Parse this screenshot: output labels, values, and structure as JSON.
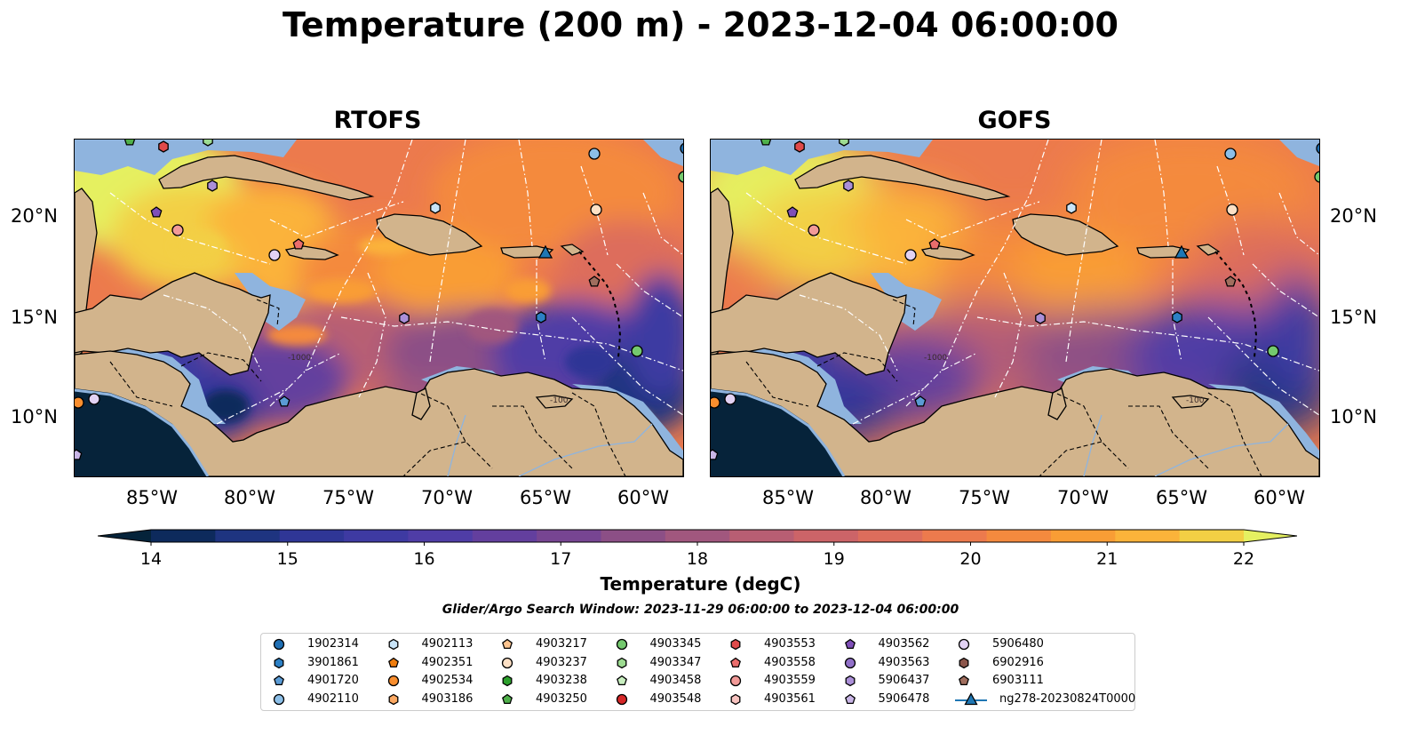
{
  "title": "Temperature (200 m) - 2023-12-04 06:00:00",
  "panels": [
    {
      "title": "RTOFS",
      "variant": "rtofs"
    },
    {
      "title": "GOFS",
      "variant": "gofs"
    }
  ],
  "lat_labels": [
    "20°N",
    "15°N",
    "10°N"
  ],
  "lon_labels": [
    "85°W",
    "80°W",
    "75°W",
    "70°W",
    "65°W",
    "60°W"
  ],
  "contour_labels": [
    "-100",
    "-1000"
  ],
  "colorbar": {
    "label": "Temperature (degC)",
    "ticks": [
      "14",
      "15",
      "16",
      "17",
      "18",
      "19",
      "20",
      "21",
      "22"
    ],
    "range": [
      14,
      22
    ],
    "colors": [
      "#05233a",
      "#0d2a5c",
      "#1e3480",
      "#2f3696",
      "#3e3aa2",
      "#4f3da6",
      "#633f9e",
      "#774592",
      "#8c4f86",
      "#a1577e",
      "#b85e73",
      "#cc6468",
      "#dd6d5c",
      "#ec7a4d",
      "#f48a3e",
      "#f99d35",
      "#fbb33a",
      "#f3cf44",
      "#e5f061"
    ]
  },
  "search_window": "Glider/Argo Search Window: 2023-11-29 06:00:00 to 2023-12-04 06:00:00",
  "legend": [
    {
      "label": "1902314",
      "marker": "circle",
      "color": "#1f6fb4"
    },
    {
      "label": "3901861",
      "marker": "hexagon",
      "color": "#2c80c5"
    },
    {
      "label": "4901720",
      "marker": "pentagon",
      "color": "#5a9bd5"
    },
    {
      "label": "4902110",
      "marker": "circle",
      "color": "#8cbfe8"
    },
    {
      "label": "4902113",
      "marker": "hexagon",
      "color": "#c9e4f8"
    },
    {
      "label": "4902351",
      "marker": "pentagon",
      "color": "#f07d0e"
    },
    {
      "label": "4902534",
      "marker": "circle",
      "color": "#f98e2e"
    },
    {
      "label": "4903186",
      "marker": "hexagon",
      "color": "#fca963"
    },
    {
      "label": "4903217",
      "marker": "pentagon",
      "color": "#fdc48f"
    },
    {
      "label": "4903237",
      "marker": "circle",
      "color": "#fde0c5"
    },
    {
      "label": "4903238",
      "marker": "hexagon",
      "color": "#2ca02c"
    },
    {
      "label": "4903250",
      "marker": "pentagon",
      "color": "#4fb04a"
    },
    {
      "label": "4903345",
      "marker": "circle",
      "color": "#74c96e"
    },
    {
      "label": "4903347",
      "marker": "hexagon",
      "color": "#9ddb91"
    },
    {
      "label": "4903458",
      "marker": "pentagon",
      "color": "#c9efc0"
    },
    {
      "label": "4903548",
      "marker": "circle",
      "color": "#d62728"
    },
    {
      "label": "4903553",
      "marker": "hexagon",
      "color": "#e04a4a"
    },
    {
      "label": "4903558",
      "marker": "pentagon",
      "color": "#ea6d6c"
    },
    {
      "label": "4903559",
      "marker": "circle",
      "color": "#f29a98"
    },
    {
      "label": "4903561",
      "marker": "hexagon",
      "color": "#f8c3c0"
    },
    {
      "label": "4903562",
      "marker": "pentagon",
      "color": "#7f4fb8"
    },
    {
      "label": "4903563",
      "marker": "circle",
      "color": "#9170c8"
    },
    {
      "label": "5906437",
      "marker": "hexagon",
      "color": "#ab8fd8"
    },
    {
      "label": "5906478",
      "marker": "pentagon",
      "color": "#c9b5e6"
    },
    {
      "label": "5906480",
      "marker": "circle",
      "color": "#e2d2f4"
    },
    {
      "label": "6902916",
      "marker": "hexagon",
      "color": "#8c564b"
    },
    {
      "label": "6903111",
      "marker": "pentagon",
      "color": "#a06e5e"
    },
    {
      "label": "ng278-20230824T0000",
      "marker": "triangle-line",
      "color": "#1f77b4"
    }
  ],
  "colors": {
    "land": "#d2b48c",
    "shelf": "#8fb4de",
    "deep": "#06233a"
  }
}
